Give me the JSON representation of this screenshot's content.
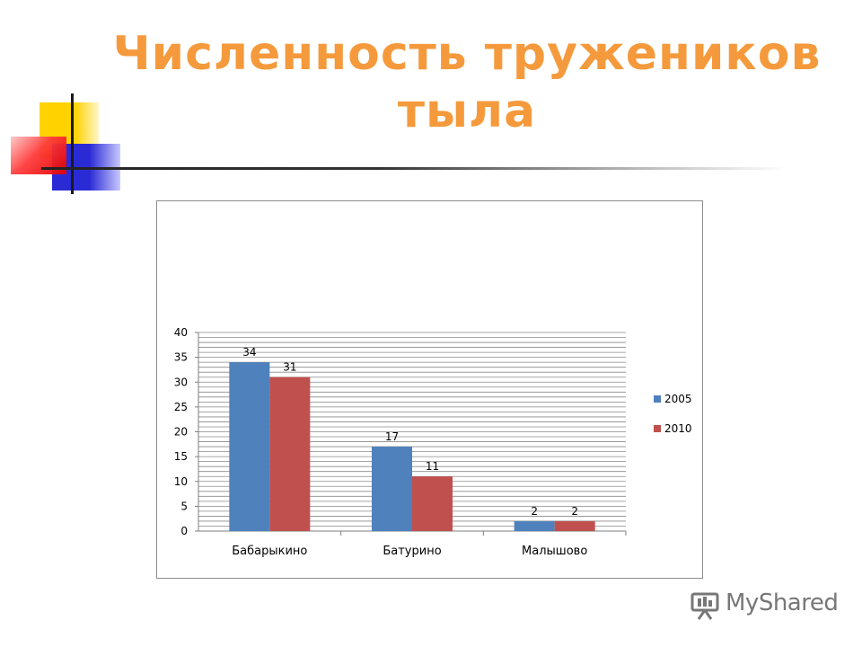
{
  "slide": {
    "title_line1": "Численность тружеников",
    "title_line2": "тыла"
  },
  "logo": {
    "text": "MyShared"
  },
  "colors": {
    "title": "#f59a3c",
    "series_2005": "#4f81bd",
    "series_2010": "#c0504d"
  },
  "chart_data": {
    "type": "bar",
    "categories": [
      "Бабарыкино",
      "Батурино",
      "Малышово"
    ],
    "series": [
      {
        "name": "2005",
        "values": [
          34,
          17,
          2
        ],
        "color": "#4f81bd"
      },
      {
        "name": "2010",
        "values": [
          31,
          11,
          2
        ],
        "color": "#c0504d"
      }
    ],
    "ylim": [
      0,
      40
    ],
    "yticks": [
      0,
      5,
      10,
      15,
      20,
      25,
      30,
      35,
      40
    ],
    "grid": true,
    "legend_position": "right",
    "data_labels": true
  }
}
